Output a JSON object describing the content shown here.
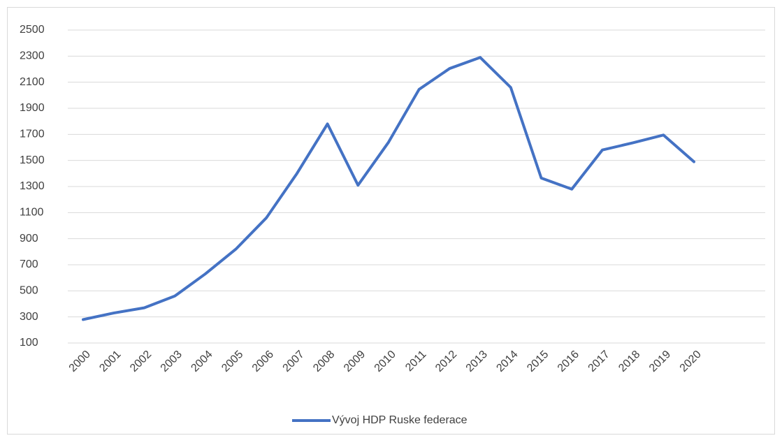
{
  "chart_data": {
    "type": "line",
    "categories": [
      "2000",
      "2001",
      "2002",
      "2003",
      "2004",
      "2005",
      "2006",
      "2007",
      "2008",
      "2009",
      "2010",
      "2011",
      "2012",
      "2013",
      "2014",
      "2015",
      "2016",
      "2017",
      "2018",
      "2019",
      "2020"
    ],
    "series": [
      {
        "name": "Vývoj HDP Ruske federace",
        "color": "#4472c4",
        "values": [
          280,
          330,
          370,
          460,
          630,
          820,
          1060,
          1400,
          1780,
          1310,
          1640,
          2045,
          2205,
          2290,
          2060,
          1365,
          1280,
          1580,
          1635,
          1695,
          1490
        ]
      }
    ],
    "ylim": [
      100,
      2500
    ],
    "yticks": [
      100,
      300,
      500,
      700,
      900,
      1100,
      1300,
      1500,
      1700,
      1900,
      2100,
      2300,
      2500
    ],
    "grid": true,
    "legend": "bottom"
  }
}
